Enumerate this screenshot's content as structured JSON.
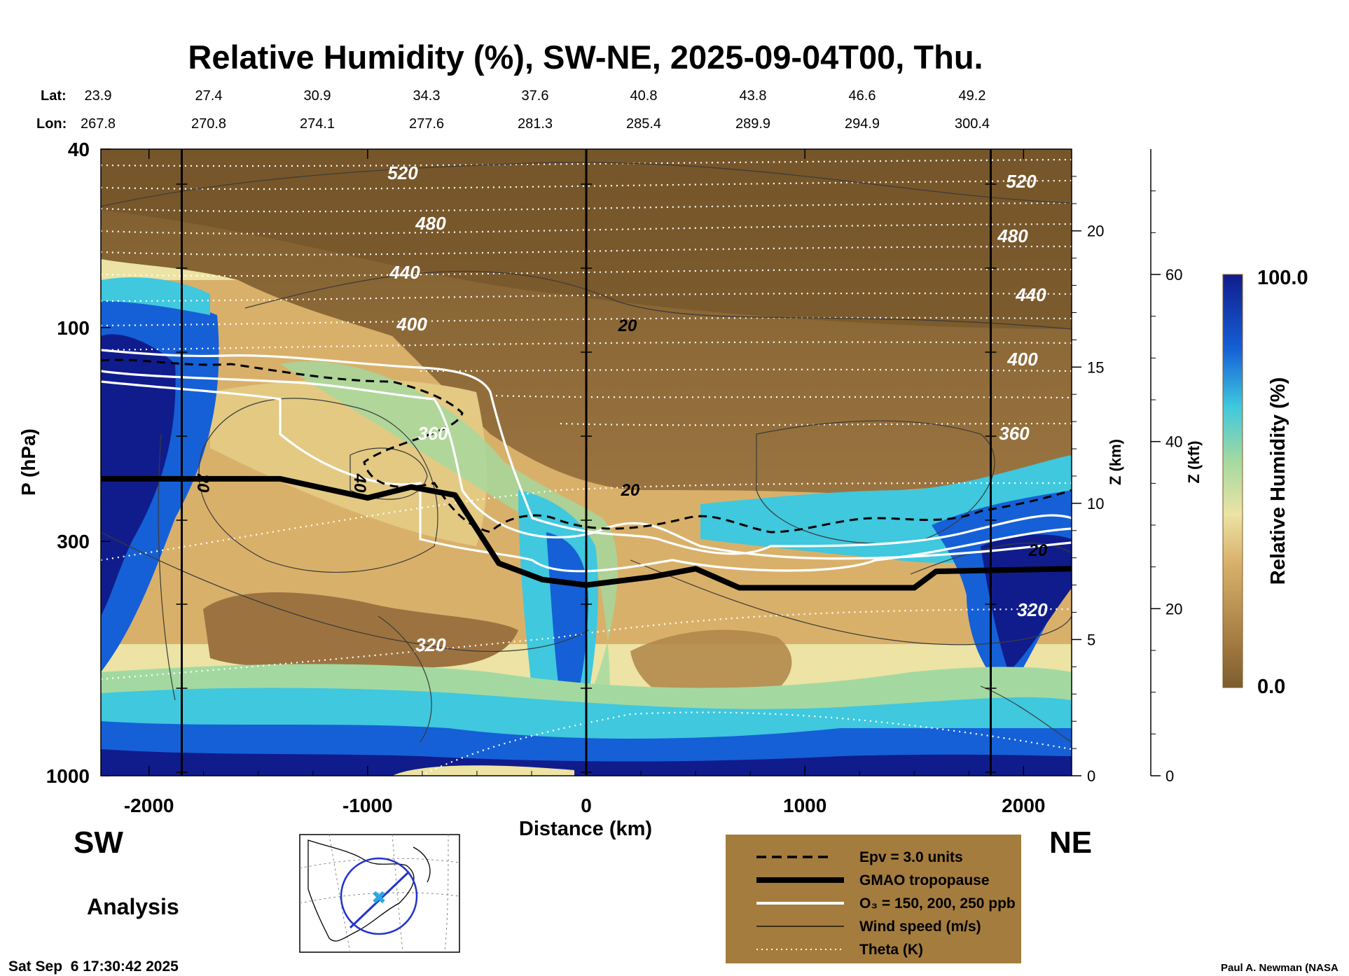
{
  "chart_data": {
    "type": "heatmap",
    "title": "Relative Humidity (%), SW-NE, 2025-09-04T00, Thu.",
    "xlabel": "Distance (km)",
    "ylabel": "P (hPa)",
    "y2label": "Z (km)",
    "y3label": "Z (kft)",
    "colorbar_label": "Relative Humidity (%)",
    "colorbar_range": [
      0.0,
      100.0
    ],
    "colorbar_ticks": [
      "100.0",
      "0.0"
    ],
    "xlim": [
      -2220,
      2220
    ],
    "ylim_hpa": [
      1000,
      40
    ],
    "x_ticks": [
      -2000,
      -1000,
      0,
      1000,
      2000
    ],
    "p_ticks": [
      40,
      100,
      300,
      1000
    ],
    "z_km_ticks": [
      0,
      5,
      10,
      15,
      20
    ],
    "z_kft_ticks": [
      0,
      20,
      40,
      60
    ],
    "lat_label": "Lat:",
    "lon_label": "Lon:",
    "lat": [
      "23.9",
      "27.4",
      "30.9",
      "34.3",
      "37.6",
      "40.8",
      "43.8",
      "46.6",
      "49.2"
    ],
    "lon": [
      "267.8",
      "270.8",
      "274.1",
      "277.6",
      "281.3",
      "285.4",
      "289.9",
      "294.9",
      "300.4"
    ],
    "vertical_lines_km": [
      -1850,
      0,
      1850
    ],
    "theta_labels": [
      "520",
      "480",
      "440",
      "400",
      "360",
      "320"
    ],
    "wind_labels": [
      "20",
      "40"
    ],
    "tropopause_km": [
      [
        -2220,
        10.9
      ],
      [
        -1400,
        10.9
      ],
      [
        -1000,
        10.2
      ],
      [
        -800,
        10.6
      ],
      [
        -600,
        10.3
      ],
      [
        -400,
        7.8
      ],
      [
        -200,
        7.2
      ],
      [
        0,
        7.0
      ],
      [
        300,
        7.3
      ],
      [
        500,
        7.6
      ],
      [
        700,
        6.9
      ],
      [
        1500,
        6.9
      ],
      [
        1600,
        7.5
      ],
      [
        2220,
        7.6
      ]
    ]
  },
  "legend": {
    "items": [
      {
        "label": "Epv = 3.0 units",
        "style": "dashed"
      },
      {
        "label": "GMAO tropopause",
        "style": "thick"
      },
      {
        "label": "O₃ = 150, 200, 250 ppb",
        "style": "white"
      },
      {
        "label": "Wind speed (m/s)",
        "style": "thin"
      },
      {
        "label": "Theta (K)",
        "style": "dotted"
      }
    ]
  },
  "labels": {
    "sw": "SW",
    "ne": "NE",
    "analysis": "Analysis",
    "timestamp": "Sat Sep  6 17:30:42 2025",
    "credit": "Paul A. Newman (NASA"
  },
  "colors": {
    "brown_dark": "#7d5c2e",
    "brown_mid": "#a77e42",
    "tan": "#d9b06a",
    "cream": "#ece3a4",
    "green": "#a3d9a0",
    "cyan": "#3fc8de",
    "blue": "#1560d6",
    "navy": "#101c8c",
    "legend_bg": "#a47c3e"
  }
}
